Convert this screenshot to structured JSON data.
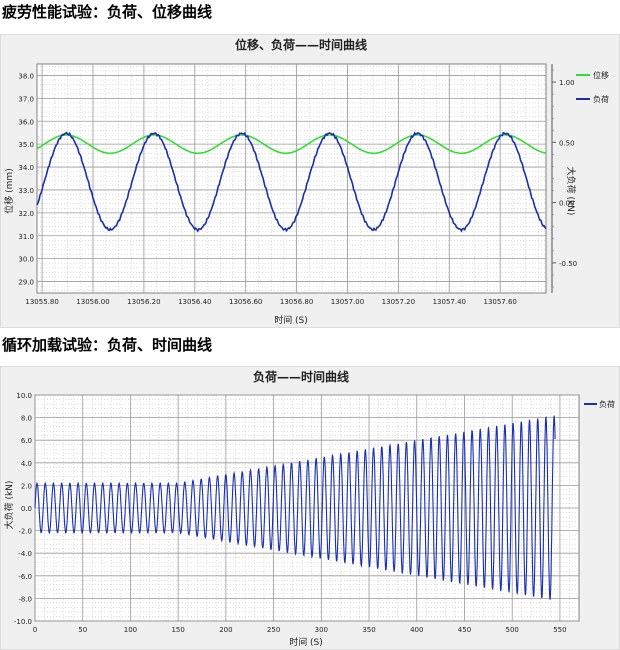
{
  "headings": {
    "fatigue": "疲劳性能试验：负荷、位移曲线",
    "cyclic": "循环加载试验：负荷、时间曲线"
  },
  "colors": {
    "displacement": "#33dd33",
    "load": "#1a2fb0",
    "grid": "#9a9a9a",
    "plot_bg": "#ffffff",
    "panel_bg": "#f0f0f0"
  },
  "chart_data": [
    {
      "type": "line",
      "title": "位移、负荷——时间曲线",
      "xlabel": "时间 (S)",
      "ylabel": "位移 (mm)",
      "y2label": "大负荷 (kN)",
      "xlim": [
        13055.78,
        13057.78
      ],
      "ylim": [
        28.5,
        38.5
      ],
      "y2lim": [
        -0.75,
        1.15
      ],
      "xticks": [
        "13055.80",
        "13056.00",
        "13056.20",
        "13056.40",
        "13056.60",
        "13056.80",
        "13057.00",
        "13057.20",
        "13057.40",
        "13057.60"
      ],
      "yticks": [
        "38.0",
        "37.0",
        "36.0",
        "35.0",
        "34.0",
        "33.0",
        "32.0",
        "31.0",
        "30.0",
        "29.0"
      ],
      "y2ticks": [
        "1.00",
        "0.50",
        "0.00",
        "-0.50"
      ],
      "grid": true,
      "legend_position": "right",
      "series": [
        {
          "name": "位移",
          "axis": "left",
          "mean": 35.0,
          "amplitude": 0.4,
          "period_s": 0.345,
          "peak_time": 13055.895
        },
        {
          "name": "负荷",
          "axis": "right",
          "mean": 0.175,
          "amplitude": 0.4,
          "period_s": 0.345,
          "peak_time": 13055.895
        }
      ]
    },
    {
      "type": "line",
      "title": "负荷——时间曲线",
      "xlabel": "时间 (S)",
      "ylabel": "大负荷 (kN)",
      "xlim": [
        0,
        570
      ],
      "ylim": [
        -10.0,
        10.0
      ],
      "xticks": [
        "0",
        "50",
        "100",
        "150",
        "200",
        "250",
        "300",
        "350",
        "400",
        "450",
        "500",
        "550"
      ],
      "yticks": [
        "10.0",
        "8.0",
        "6.0",
        "4.0",
        "2.0",
        "0.0",
        "-2.0",
        "-4.0",
        "-6.0",
        "-8.0",
        "-10.0"
      ],
      "grid": true,
      "legend_position": "right",
      "series": [
        {
          "name": "负荷",
          "period_s": 8.6,
          "amp_start": 2.2,
          "amp_end": 8.2,
          "ramp_start_s": 150,
          "end_s": 545
        }
      ]
    }
  ]
}
